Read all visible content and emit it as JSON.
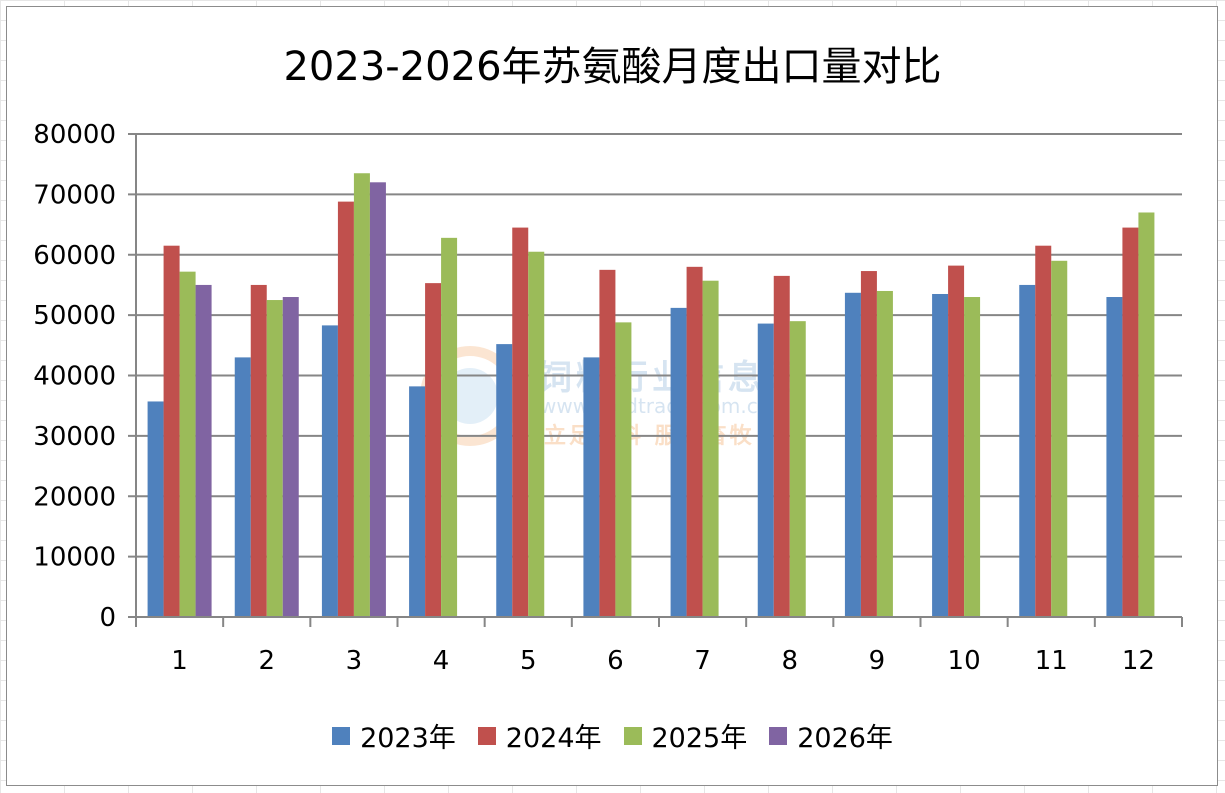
{
  "chart_data": {
    "type": "bar",
    "title": "2023-2026年苏氨酸月度出口量对比",
    "xlabel": "",
    "ylabel": "",
    "categories": [
      "1",
      "2",
      "3",
      "4",
      "5",
      "6",
      "7",
      "8",
      "9",
      "10",
      "11",
      "12"
    ],
    "ylim": [
      0,
      80000
    ],
    "yticks": [
      "0",
      "10000",
      "20000",
      "30000",
      "40000",
      "50000",
      "60000",
      "70000",
      "80000"
    ],
    "grid": true,
    "legend_position": "bottom",
    "series": [
      {
        "name": "2023年",
        "color": "#4f81bd",
        "values": [
          35700,
          43000,
          48300,
          38200,
          45200,
          43000,
          51200,
          48600,
          53700,
          53500,
          55000,
          53000
        ]
      },
      {
        "name": "2024年",
        "color": "#c0504d",
        "values": [
          61500,
          55000,
          68800,
          55300,
          64500,
          57500,
          58000,
          56500,
          57300,
          58200,
          61500,
          64500
        ]
      },
      {
        "name": "2025年",
        "color": "#9bbb59",
        "values": [
          57200,
          52500,
          73500,
          62800,
          60500,
          48800,
          55700,
          49000,
          54000,
          53000,
          59000,
          67000
        ]
      },
      {
        "name": "2026年",
        "color": "#8064a2",
        "values": [
          55000,
          53000,
          72000,
          null,
          null,
          null,
          null,
          null,
          null,
          null,
          null,
          null
        ]
      }
    ]
  },
  "watermark": {
    "name": "饲料行业信息网",
    "url": "www.feedtrade.com.cn",
    "slogan": "立足饲料  服务畜牧"
  }
}
